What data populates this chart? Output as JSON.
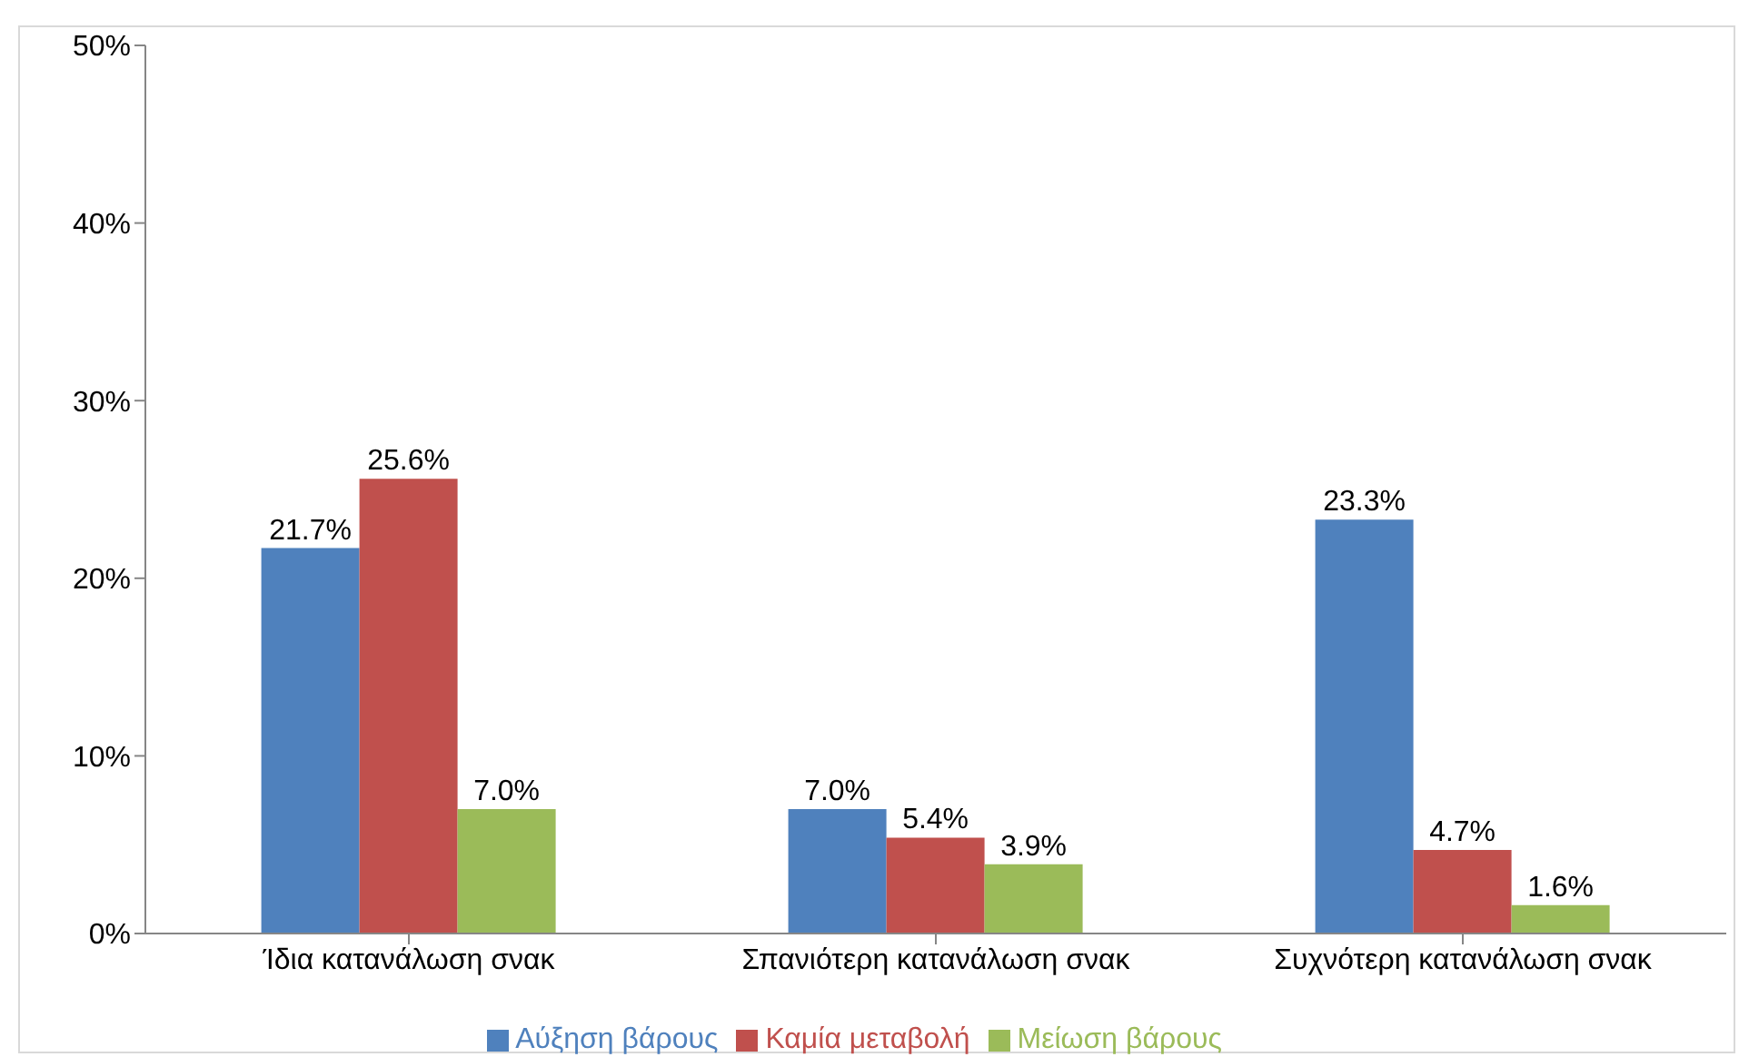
{
  "chart_data": {
    "type": "bar",
    "categories": [
      "Ίδια κατανάλωση σνακ",
      "Σπανιότερη κατανάλωση σνακ",
      "Συχνότερη κατανάλωση σνακ"
    ],
    "series": [
      {
        "name": "Αύξηση βάρους",
        "color": "#4f81bd",
        "values": [
          21.7,
          7.0,
          23.3
        ],
        "value_labels": [
          "21.7%",
          "7.0%",
          "23.3%"
        ]
      },
      {
        "name": "Καμία μεταβολή",
        "color": "#c0504d",
        "values": [
          25.6,
          5.4,
          4.7
        ],
        "value_labels": [
          "25.6%",
          "5.4%",
          "4.7%"
        ]
      },
      {
        "name": "Μείωση βάρους",
        "color": "#9bbb59",
        "values": [
          7.0,
          3.9,
          1.6
        ],
        "value_labels": [
          "7.0%",
          "3.9%",
          "1.6%"
        ]
      }
    ],
    "ylim": [
      0,
      50
    ],
    "yticks": [
      {
        "value": 0,
        "label": "0%"
      },
      {
        "value": 10,
        "label": "10%"
      },
      {
        "value": 20,
        "label": "20%"
      },
      {
        "value": 30,
        "label": "30%"
      },
      {
        "value": 40,
        "label": "40%"
      },
      {
        "value": 50,
        "label": "50%"
      }
    ],
    "grid": false,
    "legend": "bottom"
  }
}
